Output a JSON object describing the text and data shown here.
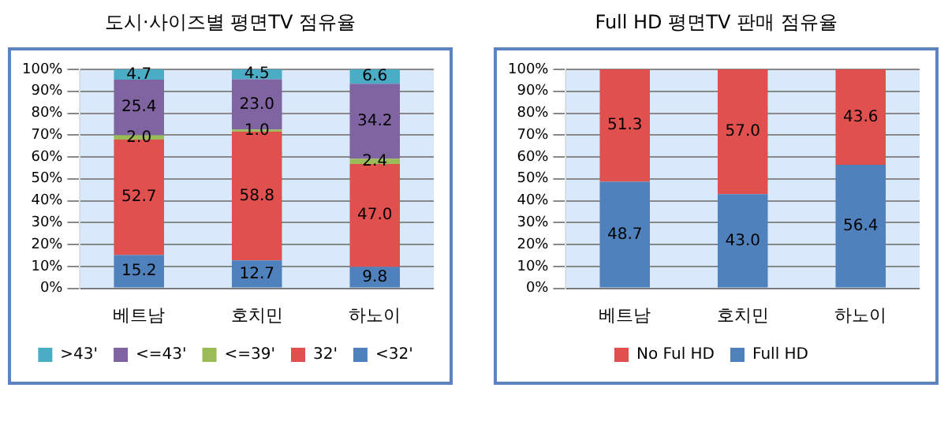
{
  "chart_data": [
    {
      "type": "bar",
      "title": "도시·사이즈별 평면TV 점유율",
      "categories": [
        "베트남",
        "호치민",
        "하노이"
      ],
      "stacked": true,
      "legend": "bottom",
      "grid": "y",
      "ylim": [
        0,
        100
      ],
      "yticks": [
        {
          "value": 0,
          "label": "0%"
        },
        {
          "value": 10,
          "label": "10%"
        },
        {
          "value": 20,
          "label": "20%"
        },
        {
          "value": 30,
          "label": "30%"
        },
        {
          "value": 40,
          "label": "40%"
        },
        {
          "value": 50,
          "label": "50%"
        },
        {
          "value": 60,
          "label": "60%"
        },
        {
          "value": 70,
          "label": "70%"
        },
        {
          "value": 80,
          "label": "80%"
        },
        {
          "value": 90,
          "label": "90%"
        },
        {
          "value": 100,
          "label": "100%"
        }
      ],
      "series": [
        {
          "name": "<32'",
          "color": "#4f81bd",
          "values": [
            15.2,
            12.7,
            9.8
          ],
          "value_labels": [
            "15.2",
            "12.7",
            "9.8"
          ]
        },
        {
          "name": "32'",
          "color": "#e0504e",
          "values": [
            52.7,
            58.8,
            47.0
          ],
          "value_labels": [
            "52.7",
            "58.8",
            "47.0"
          ]
        },
        {
          "name": "<=39'",
          "color": "#9bbb59",
          "values": [
            2.0,
            1.0,
            2.4
          ],
          "value_labels": [
            "2.0",
            "1.0",
            "2.4"
          ]
        },
        {
          "name": "<=43'",
          "color": "#8064a2",
          "values": [
            25.4,
            23.0,
            34.2
          ],
          "value_labels": [
            "25.4",
            "23.0",
            "34.2"
          ]
        },
        {
          "name": ">43'",
          "color": "#4bacc6",
          "values": [
            4.7,
            4.5,
            6.6
          ],
          "value_labels": [
            "4.7",
            "4.5",
            "6.6"
          ]
        }
      ]
    },
    {
      "type": "bar",
      "title": "Full HD 평면TV 판매 점유율",
      "categories": [
        "베트남",
        "호치민",
        "하노이"
      ],
      "stacked": true,
      "legend": "bottom",
      "grid": "y",
      "ylim": [
        0,
        100
      ],
      "yticks": [
        {
          "value": 0,
          "label": "0%"
        },
        {
          "value": 10,
          "label": "10%"
        },
        {
          "value": 20,
          "label": "20%"
        },
        {
          "value": 30,
          "label": "30%"
        },
        {
          "value": 40,
          "label": "40%"
        },
        {
          "value": 50,
          "label": "50%"
        },
        {
          "value": 60,
          "label": "60%"
        },
        {
          "value": 70,
          "label": "70%"
        },
        {
          "value": 80,
          "label": "80%"
        },
        {
          "value": 90,
          "label": "90%"
        },
        {
          "value": 100,
          "label": "100%"
        }
      ],
      "series": [
        {
          "name": "Full HD",
          "color": "#4f81bd",
          "values": [
            48.7,
            43.0,
            56.4
          ],
          "value_labels": [
            "48.7",
            "43.0",
            "56.4"
          ]
        },
        {
          "name": "No Ful HD",
          "color": "#e0504e",
          "values": [
            51.3,
            57.0,
            43.6
          ],
          "value_labels": [
            "51.3",
            "57.0",
            "43.6"
          ]
        }
      ]
    }
  ]
}
